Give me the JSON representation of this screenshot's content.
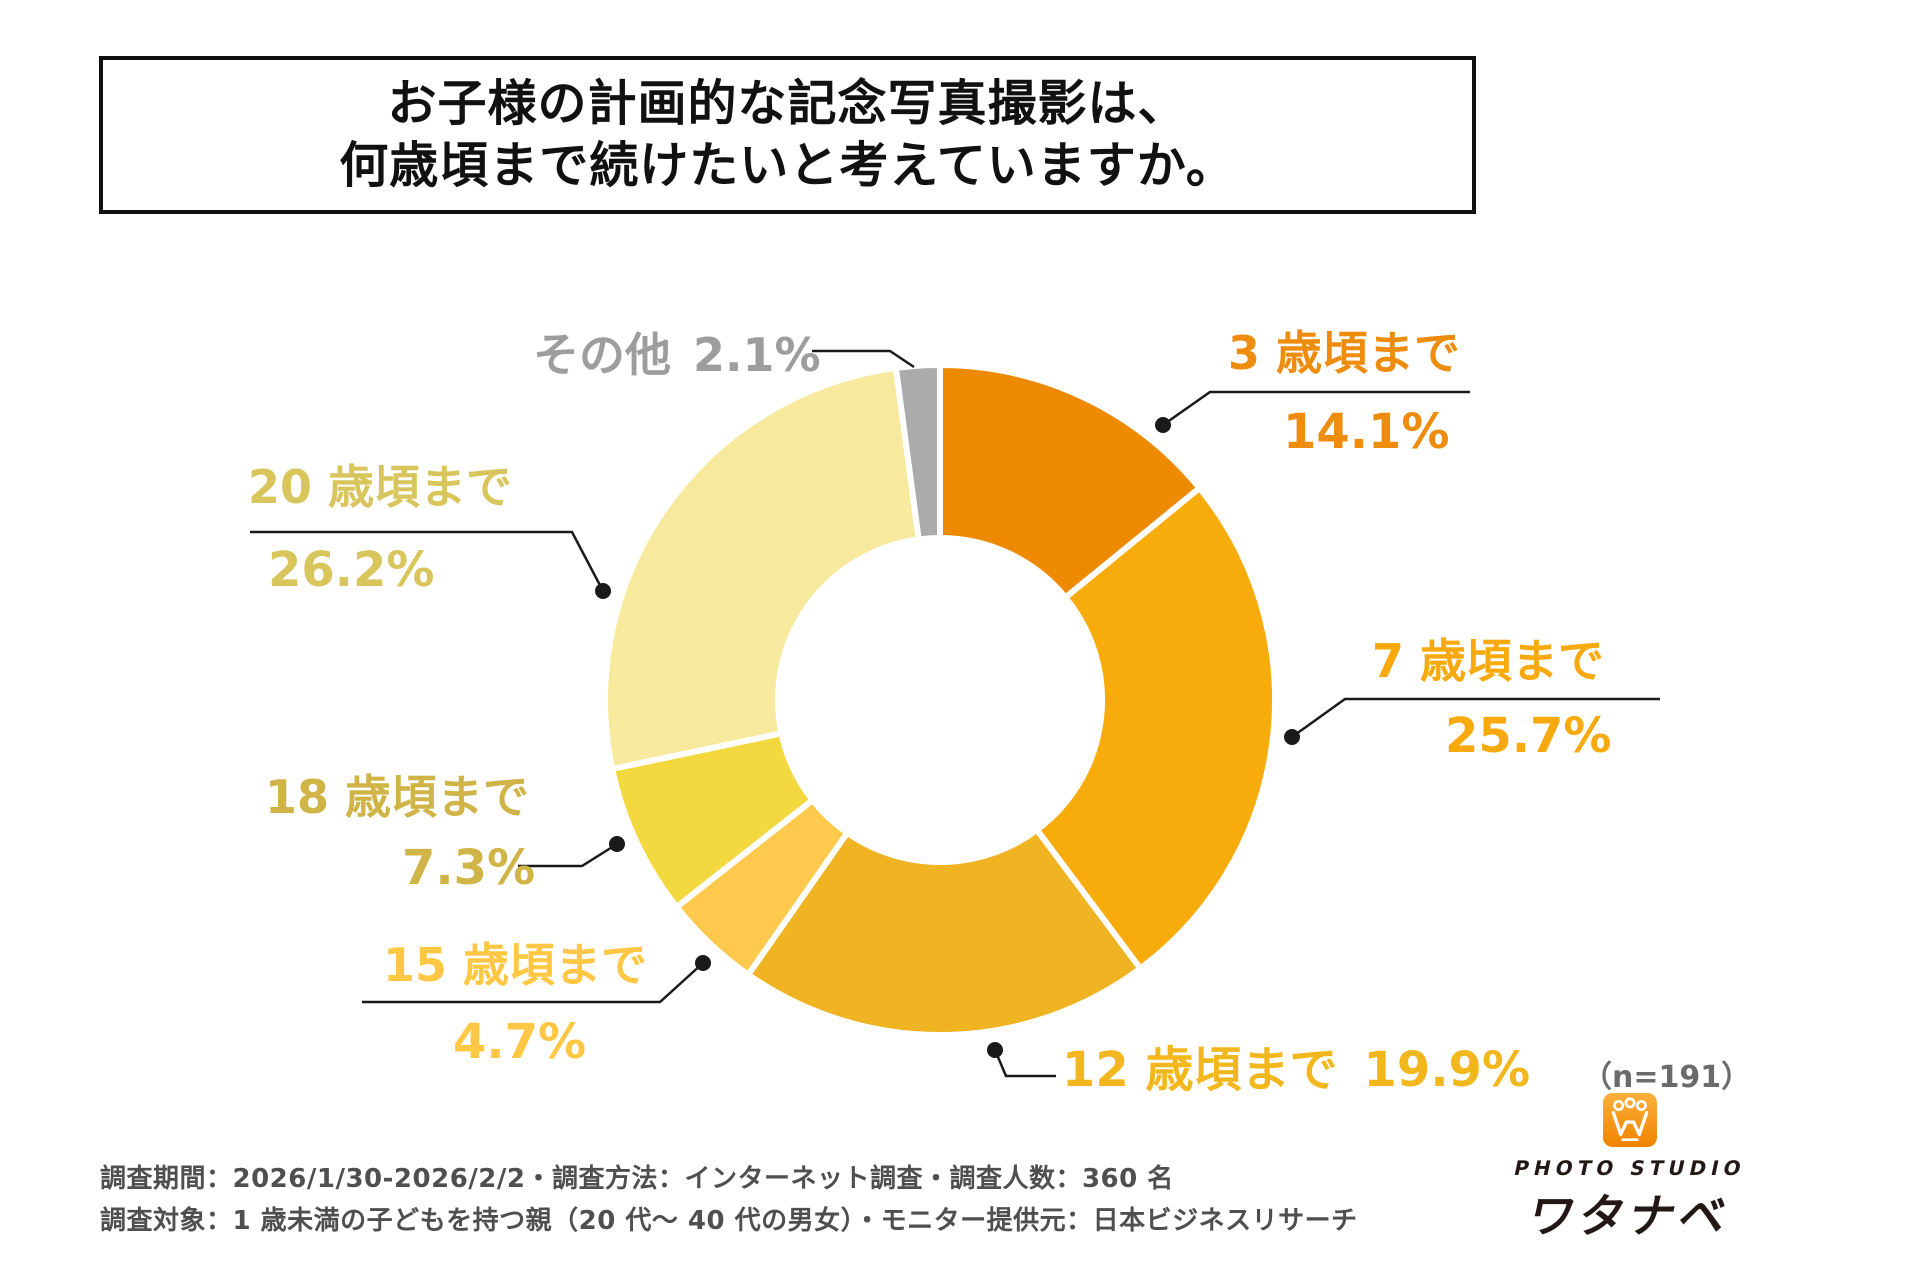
{
  "title": {
    "line1": "お子様の計画的な記念写真撮影は、",
    "line2": "何歳頃まで続けたいと考えていますか。"
  },
  "chart_data": {
    "type": "pie",
    "subtype": "donut",
    "start_angle_deg": 0,
    "direction": "clockwise",
    "units": "%",
    "sample_note": "（n=191）",
    "slices": [
      {
        "label": "3 歳頃まで",
        "value": 14.1,
        "pct_label": "14.1%",
        "color": "#ED8A00",
        "text_color": "#EE8C0D"
      },
      {
        "label": "7 歳頃まで",
        "value": 25.7,
        "pct_label": "25.7%",
        "color": "#F8AC0C",
        "text_color": "#F8A90D"
      },
      {
        "label": "12 歳頃まで",
        "value": 19.9,
        "pct_label": "19.9%",
        "color": "#F0B422",
        "text_color": "#F2B71D"
      },
      {
        "label": "15 歳頃まで",
        "value": 4.7,
        "pct_label": "4.7%",
        "color": "#FFC94E",
        "text_color": "#FFC743"
      },
      {
        "label": "18 歳頃まで",
        "value": 7.3,
        "pct_label": "7.3%",
        "color": "#F3D93F",
        "text_color": "#D0B447"
      },
      {
        "label": "20 歳頃まで",
        "value": 26.2,
        "pct_label": "26.2%",
        "color": "#F7EA9E",
        "text_color": "#D8C55B"
      },
      {
        "label": "その他",
        "value": 2.1,
        "pct_label": "2.1%",
        "color": "#ABABAB",
        "text_color": "#9D9D9D"
      }
    ]
  },
  "footer": {
    "line1": "調査期間：2026/1/30-2026/2/2・調査方法：インターネット調査・調査人数：360 名",
    "line2": "調査対象：1 歳未満の子どもを持つ親（20 代〜 40 代の男女）・モニター提供元：日本ビジネスリサーチ"
  },
  "logo": {
    "studio": "PHOTO STUDIO",
    "name": "ワタナベ",
    "mark": "W",
    "brand_color": "#F08300"
  }
}
